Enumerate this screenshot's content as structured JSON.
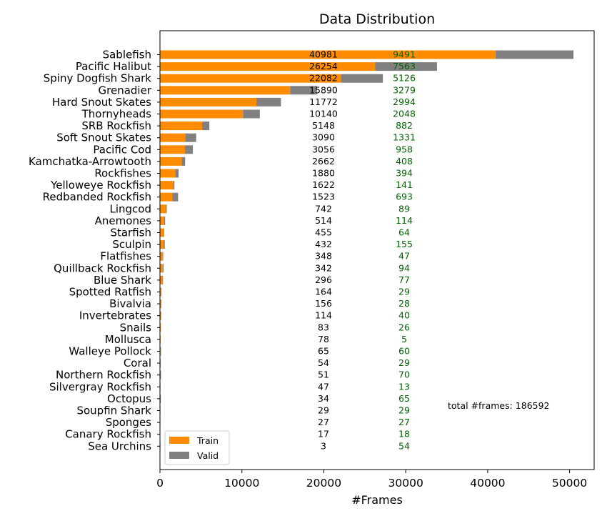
{
  "chart_data": {
    "type": "bar",
    "orientation": "horizontal",
    "stacked": true,
    "title": "Data Distribution",
    "xlabel": "#Frames",
    "ylabel": "",
    "xlim": [
      0,
      52500
    ],
    "x_ticks": [
      "0",
      "10000",
      "20000",
      "30000",
      "40000",
      "50000"
    ],
    "x_tick_values": [
      0,
      10000,
      20000,
      30000,
      40000,
      50000
    ],
    "grid": false,
    "legend_position": "lower-left",
    "categories": [
      "Sablefish",
      "Pacific Halibut",
      "Spiny Dogfish Shark",
      "Grenadier",
      "Hard Snout Skates",
      "Thornyheads",
      "SRB Rockfish",
      "Soft Snout Skates",
      "Pacific Cod",
      "Kamchatka-Arrowtooth",
      "Rockfishes",
      "Yelloweye Rockfish",
      "Redbanded Rockfish",
      "Lingcod",
      "Anemones",
      "Starfish",
      "Sculpin",
      "Flatfishes",
      "Quillback Rockfish",
      "Blue Shark",
      "Spotted Ratfish",
      "Bivalvia",
      "Invertebrates",
      "Snails",
      "Mollusca",
      "Walleye Pollock",
      "Coral",
      "Northern Rockfish",
      "Silvergray Rockfish",
      "Octopus",
      "Soupfin Shark",
      "Sponges",
      "Canary Rockfish",
      "Sea Urchins"
    ],
    "series": [
      {
        "name": "Train",
        "color": "#ff8c00",
        "values": [
          40981,
          26254,
          22082,
          15890,
          11772,
          10140,
          5148,
          3090,
          3056,
          2662,
          1880,
          1622,
          1523,
          742,
          514,
          455,
          432,
          348,
          342,
          296,
          164,
          156,
          114,
          83,
          78,
          65,
          54,
          51,
          47,
          34,
          29,
          27,
          17,
          3
        ]
      },
      {
        "name": "Valid",
        "color": "#808080",
        "values": [
          9491,
          7563,
          5126,
          3279,
          2994,
          2048,
          882,
          1331,
          958,
          408,
          394,
          141,
          693,
          89,
          114,
          64,
          155,
          47,
          94,
          77,
          29,
          28,
          40,
          26,
          5,
          60,
          29,
          70,
          13,
          65,
          29,
          27,
          18,
          54
        ]
      }
    ],
    "train_label_color": "#000000",
    "valid_label_color": "#006400",
    "annotation": "total #frames: 186592"
  }
}
